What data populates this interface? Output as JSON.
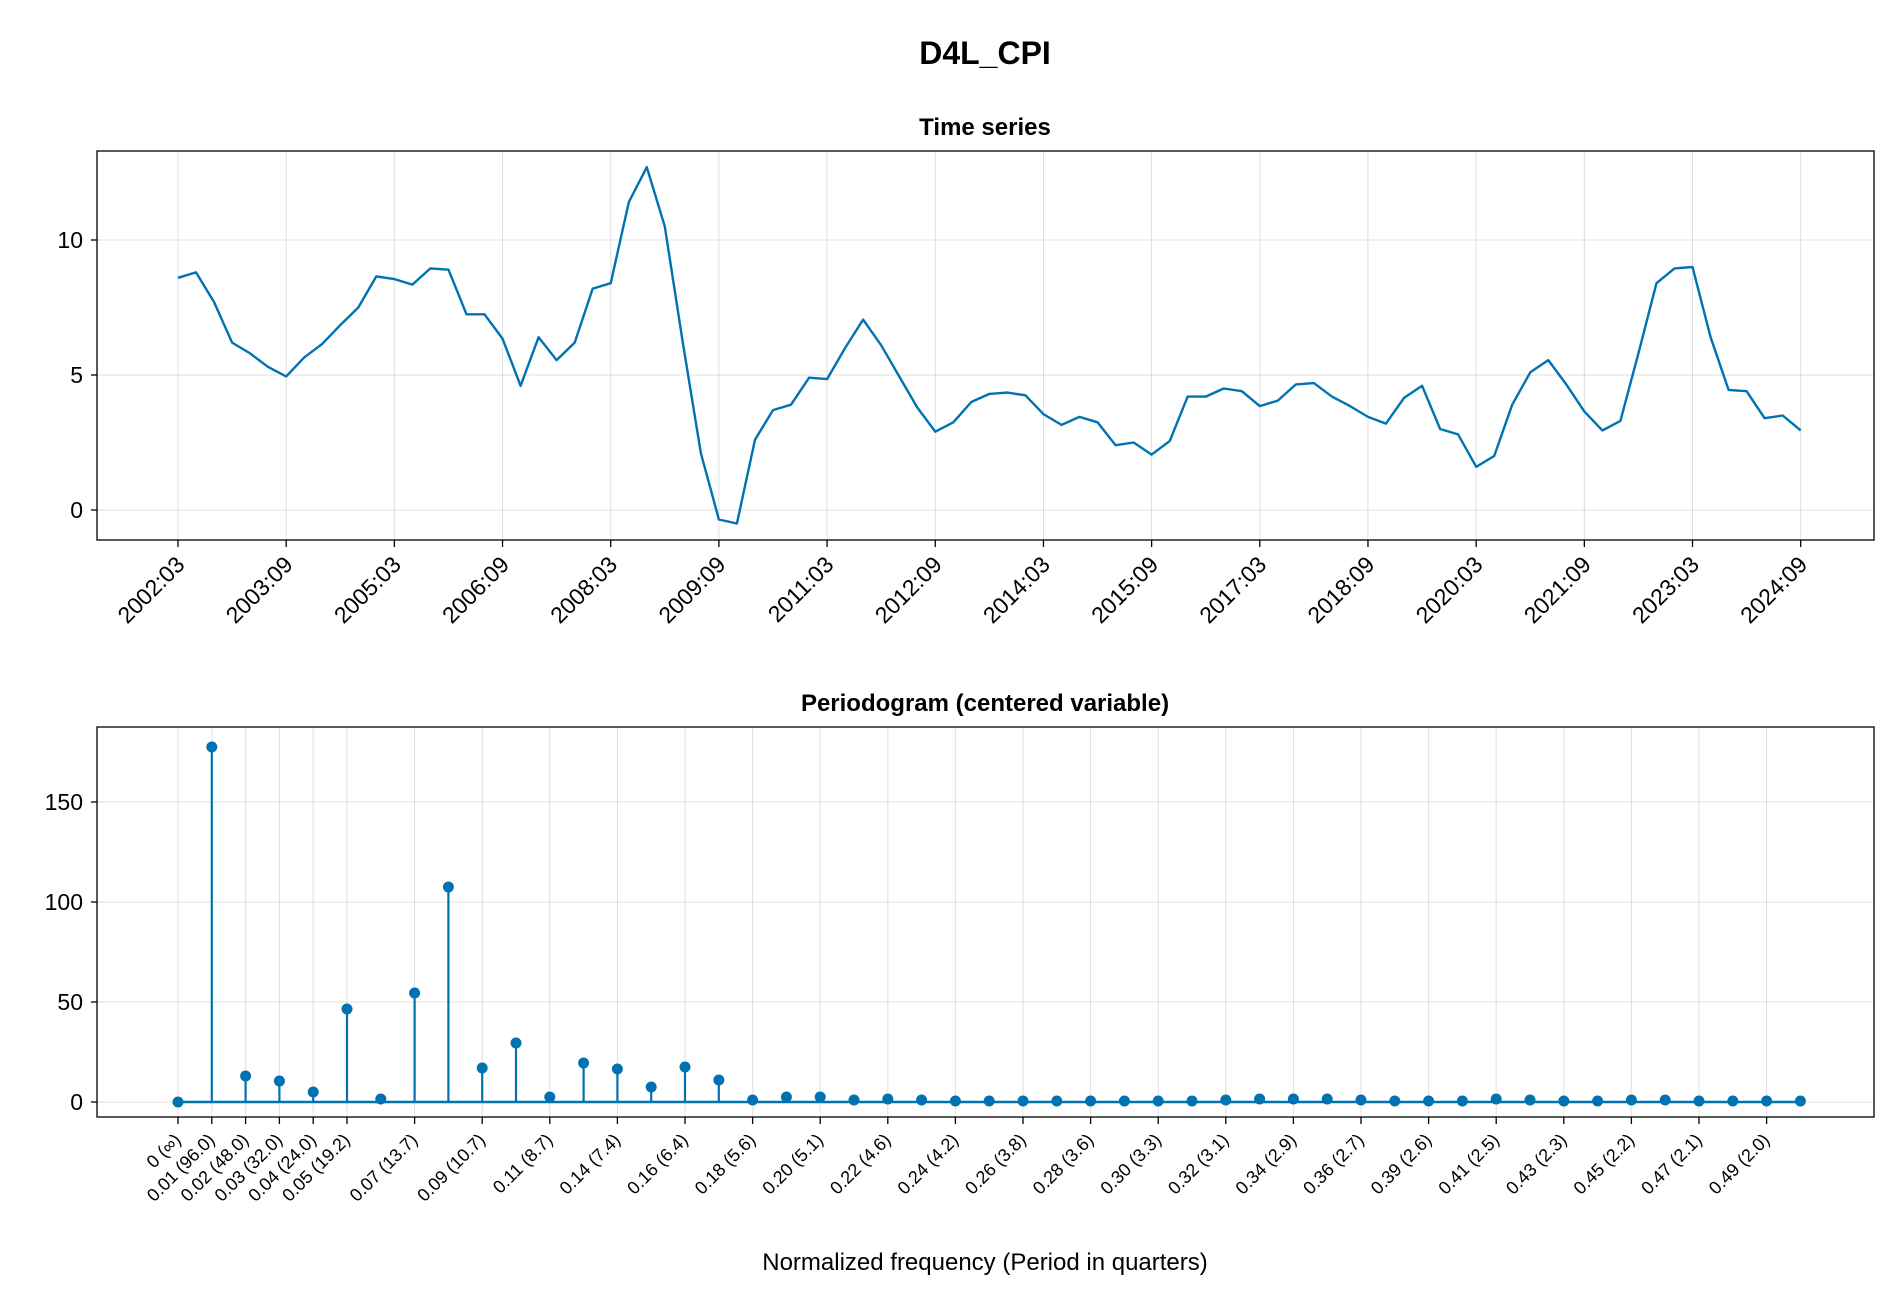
{
  "title": "D4L_CPI",
  "colors": {
    "series": "#0072b2",
    "text": "#000000",
    "frame": "#000000"
  },
  "chart_data": [
    {
      "type": "line",
      "title": "Time series",
      "xlabel": "",
      "ylabel": "",
      "ylim": [
        -1.2,
        13.6
      ],
      "yticks": [
        0,
        5,
        10
      ],
      "grid": true,
      "xtick_labels": [
        "2002:03",
        "2003:09",
        "2005:03",
        "2006:09",
        "2008:03",
        "2009:09",
        "2011:03",
        "2012:09",
        "2014:03",
        "2015:09",
        "2017:03",
        "2018:09",
        "2020:03",
        "2021:09",
        "2023:03",
        "2024:09"
      ],
      "x_start": "2002:03",
      "x_frequency": "quarterly",
      "values": [
        8.6,
        8.8,
        7.7,
        6.2,
        5.8,
        5.3,
        4.95,
        5.65,
        6.15,
        6.85,
        7.5,
        8.65,
        8.55,
        8.35,
        8.95,
        8.9,
        7.25,
        7.25,
        6.35,
        4.6,
        6.4,
        5.55,
        6.2,
        8.2,
        8.4,
        11.4,
        12.7,
        10.5,
        6.2,
        2.1,
        -0.35,
        -0.5,
        2.6,
        3.7,
        3.9,
        4.9,
        4.85,
        6.0,
        7.05,
        6.1,
        4.95,
        3.8,
        2.9,
        3.25,
        4.0,
        4.3,
        4.35,
        4.25,
        3.55,
        3.15,
        3.45,
        3.25,
        2.4,
        2.5,
        2.05,
        2.55,
        4.2,
        4.2,
        4.5,
        4.4,
        3.85,
        4.05,
        4.65,
        4.7,
        4.2,
        3.85,
        3.45,
        3.2,
        4.15,
        4.6,
        3.0,
        2.8,
        1.6,
        2.0,
        3.9,
        5.1,
        5.55,
        4.65,
        3.65,
        2.95,
        3.3,
        5.8,
        8.4,
        8.95,
        9.0,
        6.4,
        4.45,
        4.4,
        3.4,
        3.5,
        2.95
      ]
    },
    {
      "type": "stem",
      "title": "Periodogram (centered variable)",
      "xlabel": "Normalized frequency (Period in quarters)",
      "ylabel": "",
      "ylim": [
        -8,
        186
      ],
      "yticks": [
        0,
        50,
        100,
        150
      ],
      "grid": true,
      "x_start": 0,
      "x_step": 0.0104167,
      "xtick_labels": [
        "0 (∞)",
        "0.01 (96.0)",
        "0.02 (48.0)",
        "0.03 (32.0)",
        "0.04 (24.0)",
        "0.05 (19.2)",
        "0.07 (13.7)",
        "0.09 (10.7)",
        "0.11 (8.7)",
        "0.14 (7.4)",
        "0.16 (6.4)",
        "0.18 (5.6)",
        "0.20 (5.1)",
        "0.22 (4.6)",
        "0.24 (4.2)",
        "0.26 (3.8)",
        "0.28 (3.6)",
        "0.30 (3.3)",
        "0.32 (3.1)",
        "0.34 (2.9)",
        "0.36 (2.7)",
        "0.39 (2.6)",
        "0.41 (2.5)",
        "0.43 (2.3)",
        "0.45 (2.2)",
        "0.47 (2.1)",
        "0.49 (2.0)"
      ],
      "xtick_index": [
        0,
        1,
        2,
        3,
        4,
        5,
        7,
        9,
        11,
        13,
        15,
        17,
        19,
        21,
        23,
        25,
        27,
        29,
        31,
        33,
        35,
        37,
        39,
        41,
        43,
        45,
        47
      ],
      "values": [
        0,
        177.5,
        13,
        10.5,
        5,
        46.5,
        1.5,
        54.5,
        107.5,
        17,
        29.5,
        2.5,
        19.5,
        16.5,
        7.5,
        17.5,
        11,
        1,
        2.5,
        2.5,
        1,
        1.5,
        1,
        0.5,
        0.5,
        0.5,
        0.5,
        0.5,
        0.5,
        0.5,
        0.5,
        1,
        1.5,
        1.5,
        1.5,
        1,
        0.5,
        0.5,
        0.5,
        1.5,
        1,
        0.5,
        0.5,
        1,
        1,
        0.5,
        0.5,
        0.5,
        0.5
      ]
    }
  ]
}
